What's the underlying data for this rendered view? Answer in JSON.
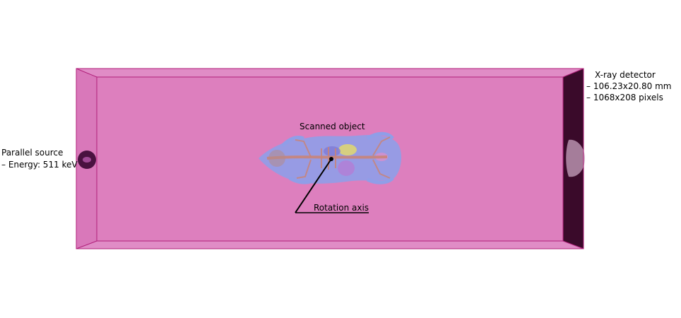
{
  "source": {
    "title": "Parallel source",
    "energy": "– Energy: 511 keV"
  },
  "object": {
    "label": "Scanned object"
  },
  "axis": {
    "label": "Rotation axis"
  },
  "detector": {
    "title": "X-ray detector",
    "size": "– 106.23x20.80 mm",
    "pixels": "– 1068x208 pixels"
  },
  "colors": {
    "box_face": "#dd7fbe",
    "box_edge": "#b0207a",
    "box_side": "#d470b3",
    "detector": "#3a0a2a",
    "source": "#4a1240",
    "mouse_body": "#8f9ee8"
  }
}
